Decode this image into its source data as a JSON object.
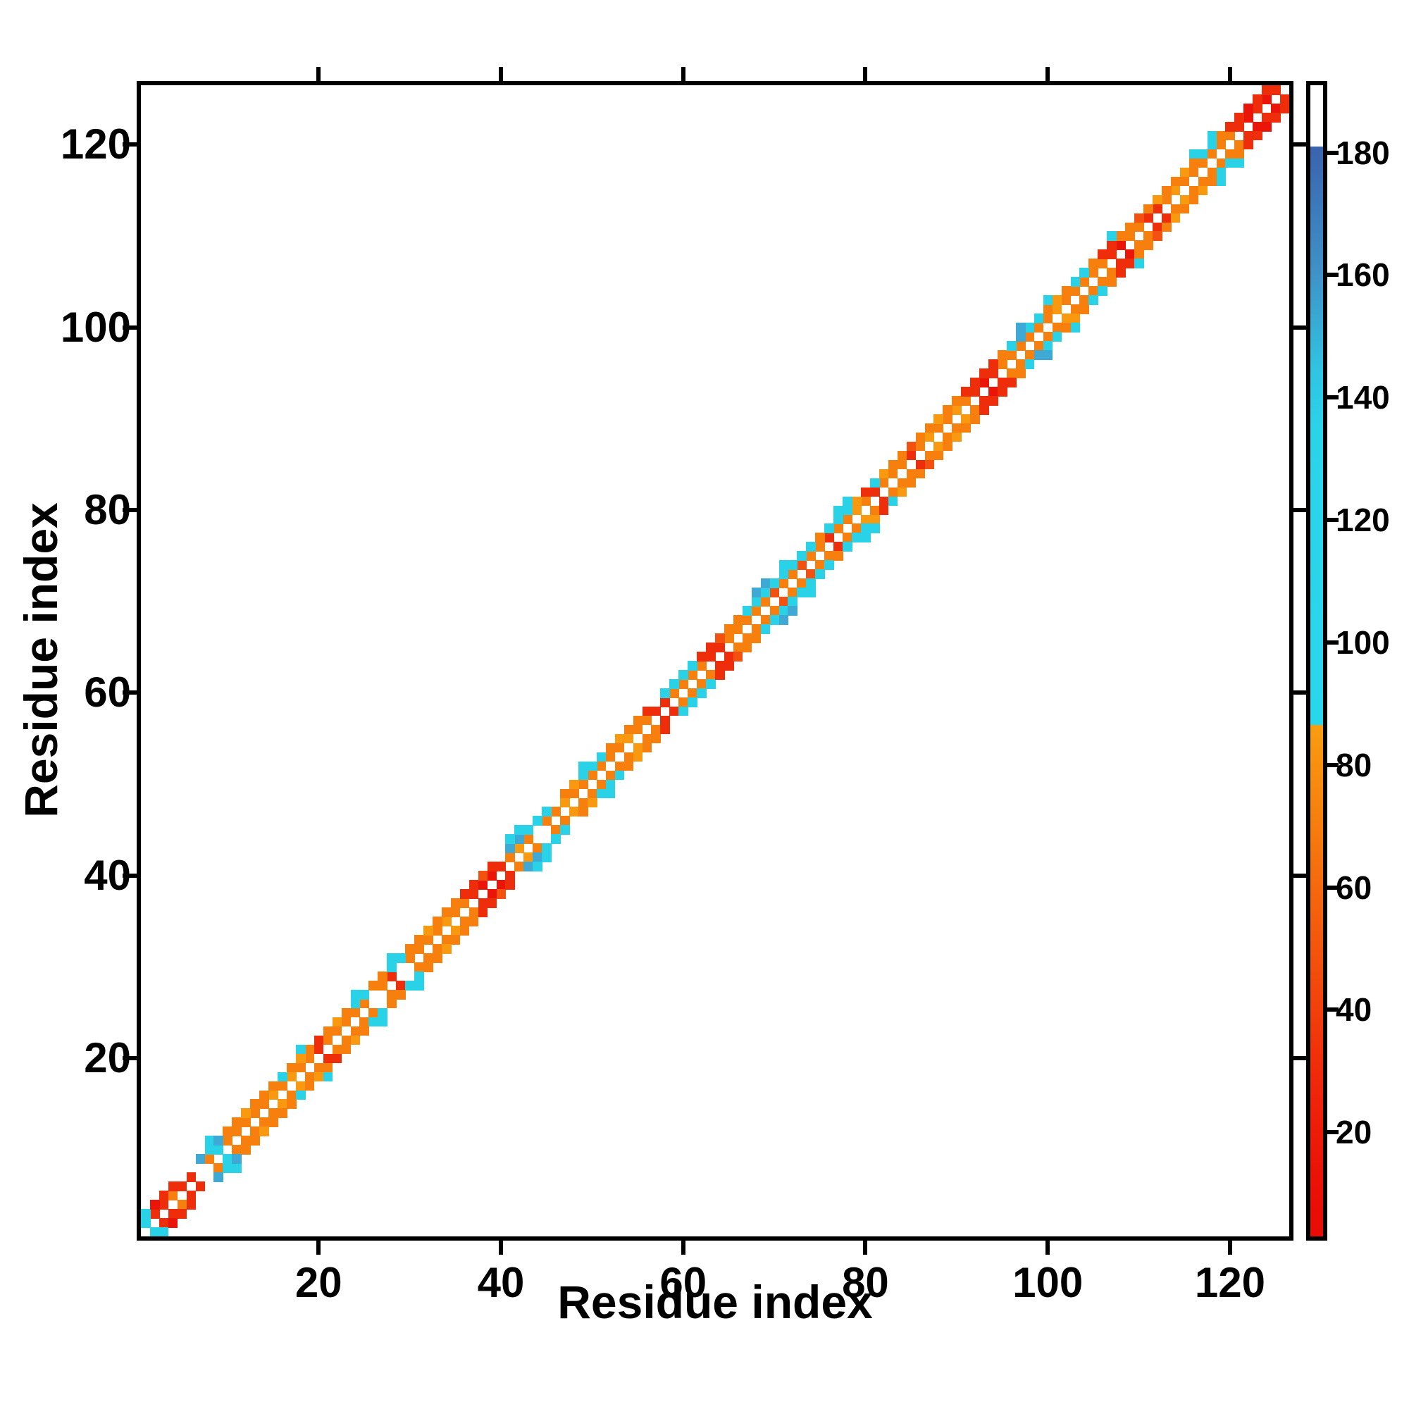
{
  "chart_data": {
    "type": "heatmap",
    "title": "",
    "xlabel": "Residue index",
    "ylabel": "Residue index",
    "x_ticks": [
      20,
      40,
      60,
      80,
      100,
      120
    ],
    "y_ticks": [
      20,
      40,
      60,
      80,
      100,
      120
    ],
    "axis_range": [
      0.5,
      126.5
    ],
    "n_residues": 126,
    "symmetric": true,
    "diagonal": "empty",
    "grid": "off",
    "band": {
      "d1": "CRRORR.OCOOOOOoOoOOROOOOO.OR.OOOOoOORrrROoO.OOoOOOOOOoOORROOOORROOOOOqOOqOOROOoOROOOROoOOoORrROOOOOOoOOOOORrOORROoOOOOOORrRrR",
      "d2": "CrRR..BCCOOoOOOCOoOROoOCCOOCCOOoOOORRqR.BBCCC.OoCCCOoOOR.CCCCRRqOOCCCCCCCCOCCCoRCoOOqOOoOORRRROCBCCOoOCCORROOqOoOOoOCCORRrRR",
      "extra": [
        [
          8,
          11,
          "C"
        ],
        [
          9,
          11,
          "B"
        ],
        [
          18,
          21,
          "C"
        ],
        [
          24,
          27,
          "C"
        ],
        [
          28,
          31,
          "C"
        ],
        [
          41,
          44,
          "C"
        ],
        [
          42,
          45,
          "C"
        ],
        [
          49,
          52,
          "C"
        ],
        [
          68,
          71,
          "B"
        ],
        [
          69,
          72,
          "B"
        ],
        [
          71,
          74,
          "C"
        ],
        [
          77,
          80,
          "C"
        ],
        [
          78,
          81,
          "C"
        ],
        [
          97,
          100,
          "B"
        ],
        [
          100,
          103,
          "C"
        ],
        [
          107,
          110,
          "C"
        ],
        [
          116,
          119,
          "C"
        ],
        [
          118,
          121,
          "C"
        ]
      ]
    },
    "palette": {
      "r": "#ea1408",
      "R": "#ee2d0b",
      "q": "#f35110",
      "O": "#f67f0e",
      "o": "#f9990f",
      "C": "#2ad2e8",
      "B": "#3fa9d6"
    },
    "palette_values": {
      "r": 12,
      "R": 27,
      "q": 48,
      "O": 67,
      "o": 80,
      "C": 112,
      "B": 150
    },
    "colorbar": {
      "position": "right",
      "ticks": [
        20,
        40,
        60,
        80,
        100,
        120,
        140,
        160,
        180
      ],
      "range": [
        3,
        191
      ],
      "gradient_top_to_bottom": [
        [
          0.0,
          "#ffffff"
        ],
        [
          0.053,
          "#ffffff"
        ],
        [
          0.0535,
          "#3a63ae"
        ],
        [
          0.165,
          "#3f93c8"
        ],
        [
          0.25,
          "#30c5e2"
        ],
        [
          0.3,
          "#2bd3e9"
        ],
        [
          0.5555,
          "#29d7ec"
        ],
        [
          0.556,
          "#f99d10"
        ],
        [
          0.64,
          "#f67e0e"
        ],
        [
          0.75,
          "#f3550d"
        ],
        [
          0.856,
          "#ef2b0b"
        ],
        [
          0.952,
          "#ea1106"
        ],
        [
          1.0,
          "#e70c05"
        ]
      ]
    }
  }
}
